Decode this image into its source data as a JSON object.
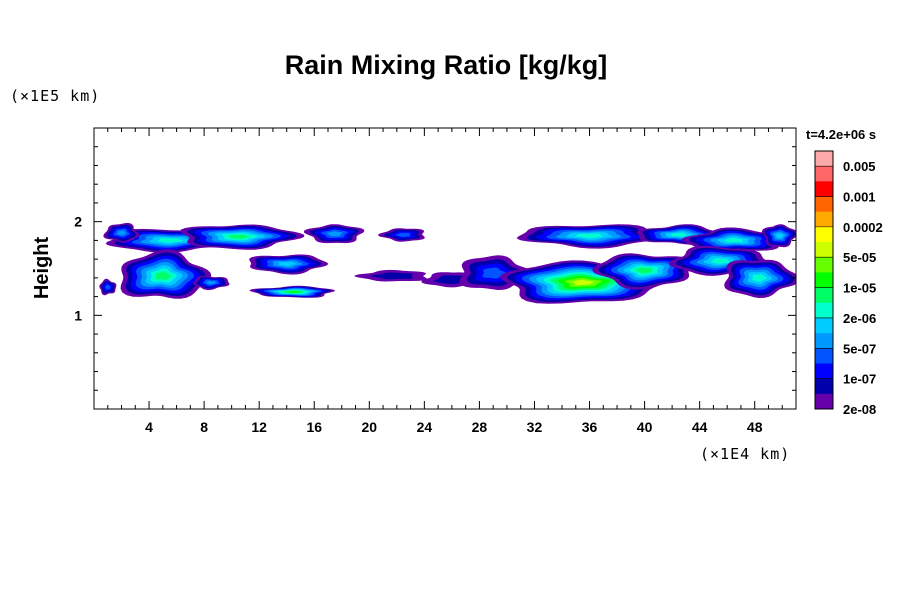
{
  "chart_data": {
    "type": "heatmap",
    "title": "Rain Mixing Ratio [kg/kg]",
    "ylabel": "Height",
    "xunit": "(×1E4 km)",
    "yunit": "(×1E5 km)",
    "time_label": "t=4.2e+06 s",
    "xlim": [
      0,
      51
    ],
    "ylim": [
      0,
      3
    ],
    "x_ticks": [
      "4",
      "8",
      "12",
      "16",
      "20",
      "24",
      "28",
      "32",
      "36",
      "40",
      "44",
      "48"
    ],
    "y_ticks": [
      "1",
      "2"
    ],
    "colorbar": {
      "labels": [
        "0.005",
        "0.001",
        "0.0002",
        "5e-05",
        "1e-05",
        "2e-06",
        "5e-07",
        "1e-07",
        "2e-08"
      ],
      "colors": [
        "#ffaaaa",
        "#ff6666",
        "#ff0000",
        "#ff6600",
        "#ffaa00",
        "#ffff00",
        "#ccff00",
        "#66ff00",
        "#00ff00",
        "#00ff66",
        "#00ffcc",
        "#00ccff",
        "#0099ff",
        "#0055ff",
        "#0000ff",
        "#0000aa",
        "#6600aa"
      ]
    },
    "clouds": [
      {
        "x": 5.5,
        "y": 1.8,
        "rx": 4.6,
        "ry": 0.12,
        "level": 6
      },
      {
        "x": 10.5,
        "y": 1.84,
        "rx": 4.2,
        "ry": 0.13,
        "level": 7
      },
      {
        "x": 17.5,
        "y": 1.87,
        "rx": 2.0,
        "ry": 0.1,
        "level": 4
      },
      {
        "x": 22.5,
        "y": 1.86,
        "rx": 1.6,
        "ry": 0.07,
        "level": 3
      },
      {
        "x": 2.0,
        "y": 1.88,
        "rx": 1.2,
        "ry": 0.1,
        "level": 4
      },
      {
        "x": 5.0,
        "y": 1.42,
        "rx": 3.2,
        "ry": 0.25,
        "level": 7
      },
      {
        "x": 1.0,
        "y": 1.3,
        "rx": 0.6,
        "ry": 0.08,
        "level": 3
      },
      {
        "x": 8.5,
        "y": 1.35,
        "rx": 1.3,
        "ry": 0.07,
        "level": 4
      },
      {
        "x": 14.0,
        "y": 1.55,
        "rx": 2.8,
        "ry": 0.1,
        "level": 5
      },
      {
        "x": 14.5,
        "y": 1.25,
        "rx": 2.9,
        "ry": 0.06,
        "level": 8
      },
      {
        "x": 21.8,
        "y": 1.42,
        "rx": 2.5,
        "ry": 0.06,
        "level": 1
      },
      {
        "x": 26.0,
        "y": 1.38,
        "rx": 2.0,
        "ry": 0.08,
        "level": 1
      },
      {
        "x": 29.0,
        "y": 1.45,
        "rx": 2.5,
        "ry": 0.18,
        "level": 3
      },
      {
        "x": 35.5,
        "y": 1.35,
        "rx": 5.8,
        "ry": 0.22,
        "level": 10
      },
      {
        "x": 40.0,
        "y": 1.48,
        "rx": 3.5,
        "ry": 0.18,
        "level": 7
      },
      {
        "x": 36.0,
        "y": 1.85,
        "rx": 5.0,
        "ry": 0.12,
        "level": 6
      },
      {
        "x": 42.5,
        "y": 1.86,
        "rx": 3.0,
        "ry": 0.1,
        "level": 6
      },
      {
        "x": 46.5,
        "y": 1.8,
        "rx": 3.5,
        "ry": 0.12,
        "level": 6
      },
      {
        "x": 45.5,
        "y": 1.58,
        "rx": 3.5,
        "ry": 0.15,
        "level": 6
      },
      {
        "x": 48.3,
        "y": 1.4,
        "rx": 2.6,
        "ry": 0.2,
        "level": 6
      },
      {
        "x": 49.8,
        "y": 1.85,
        "rx": 1.2,
        "ry": 0.12,
        "level": 5
      }
    ]
  }
}
